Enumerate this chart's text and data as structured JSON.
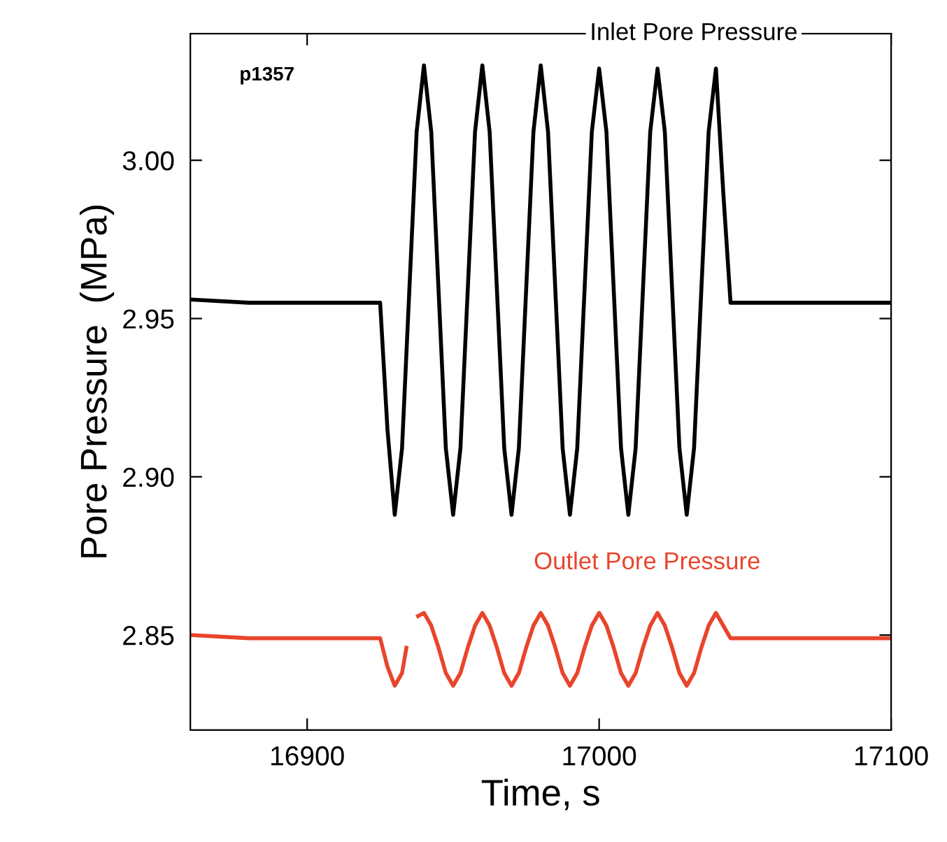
{
  "chart_data": {
    "type": "line",
    "xlabel": "Time, s",
    "ylabel": "Pore Pressure  (MPa)",
    "annotations": [
      "p1357"
    ],
    "xlim": [
      16860,
      17100
    ],
    "ylim": [
      2.82,
      3.04
    ],
    "xticks": [
      16900,
      17000,
      17100
    ],
    "yticks": [
      {
        "value": 2.85,
        "label": "2.85"
      },
      {
        "value": 2.9,
        "label": "2.90"
      },
      {
        "value": 2.95,
        "label": "2.95"
      },
      {
        "value": 3.0,
        "label": "3.00"
      }
    ],
    "grid": false,
    "legend": false,
    "marker": "none",
    "line_style": "solid",
    "series": [
      {
        "name": "Inlet Pore Pressure",
        "color": "#000000",
        "x": [
          16860,
          16880,
          16900,
          16920,
          16925,
          16927.5,
          16930,
          16932.5,
          16935,
          16937.5,
          16940,
          16942.5,
          16945,
          16947.5,
          16950,
          16952.5,
          16955,
          16957.5,
          16960,
          16962.5,
          16965,
          16967.5,
          16970,
          16972.5,
          16975,
          16977.5,
          16980,
          16982.5,
          16985,
          16987.5,
          16990,
          16992.5,
          16995,
          16997.5,
          17000,
          17002.5,
          17005,
          17007.5,
          17010,
          17012.5,
          17015,
          17017.5,
          17020,
          17022.5,
          17025,
          17027.5,
          17030,
          17032.5,
          17035,
          17037.5,
          17040,
          17042.5,
          17045,
          17060,
          17080,
          17100
        ],
        "values": [
          2.956,
          2.955,
          2.955,
          2.955,
          2.955,
          2.915,
          2.888,
          2.909,
          2.959,
          3.009,
          3.03,
          3.009,
          2.959,
          2.909,
          2.888,
          2.909,
          2.959,
          3.009,
          3.03,
          3.009,
          2.959,
          2.909,
          2.888,
          2.909,
          2.959,
          3.009,
          3.03,
          3.009,
          2.959,
          2.909,
          2.888,
          2.909,
          2.959,
          3.009,
          3.029,
          3.009,
          2.959,
          2.909,
          2.888,
          2.909,
          2.959,
          3.009,
          3.029,
          3.009,
          2.959,
          2.909,
          2.888,
          2.909,
          2.959,
          3.009,
          3.029,
          2.99,
          2.955,
          2.955,
          2.955,
          2.955
        ]
      },
      {
        "name": "Outlet Pore Pressure",
        "color": "#e8452c",
        "x": [
          16860,
          16880,
          16900,
          16920,
          16925,
          16927.5,
          16930,
          16932.5,
          16934,
          16936,
          16938,
          16940,
          16942.5,
          16945,
          16947.5,
          16950,
          16952.5,
          16955,
          16957.5,
          16960,
          16962.5,
          16965,
          16967.5,
          16970,
          16972.5,
          16975,
          16977.5,
          16980,
          16982.5,
          16985,
          16987.5,
          16990,
          16992.5,
          16995,
          16997.5,
          17000,
          17002.5,
          17005,
          17007.5,
          17010,
          17012.5,
          17015,
          17017.5,
          17020,
          17022.5,
          17025,
          17027.5,
          17030,
          17032.5,
          17035,
          17037.5,
          17040,
          17042.5,
          17045,
          17060,
          17080,
          17100
        ],
        "values": [
          2.85,
          2.849,
          2.849,
          2.849,
          2.849,
          2.84,
          2.834,
          2.838,
          2.846,
          null,
          2.856,
          2.857,
          2.853,
          2.846,
          2.838,
          2.834,
          2.838,
          2.846,
          2.853,
          2.857,
          2.853,
          2.846,
          2.838,
          2.834,
          2.838,
          2.846,
          2.853,
          2.857,
          2.853,
          2.846,
          2.838,
          2.834,
          2.838,
          2.846,
          2.853,
          2.857,
          2.853,
          2.846,
          2.838,
          2.834,
          2.838,
          2.846,
          2.853,
          2.857,
          2.853,
          2.846,
          2.838,
          2.834,
          2.838,
          2.846,
          2.853,
          2.857,
          2.853,
          2.849,
          2.849,
          2.849,
          2.849
        ]
      }
    ]
  }
}
